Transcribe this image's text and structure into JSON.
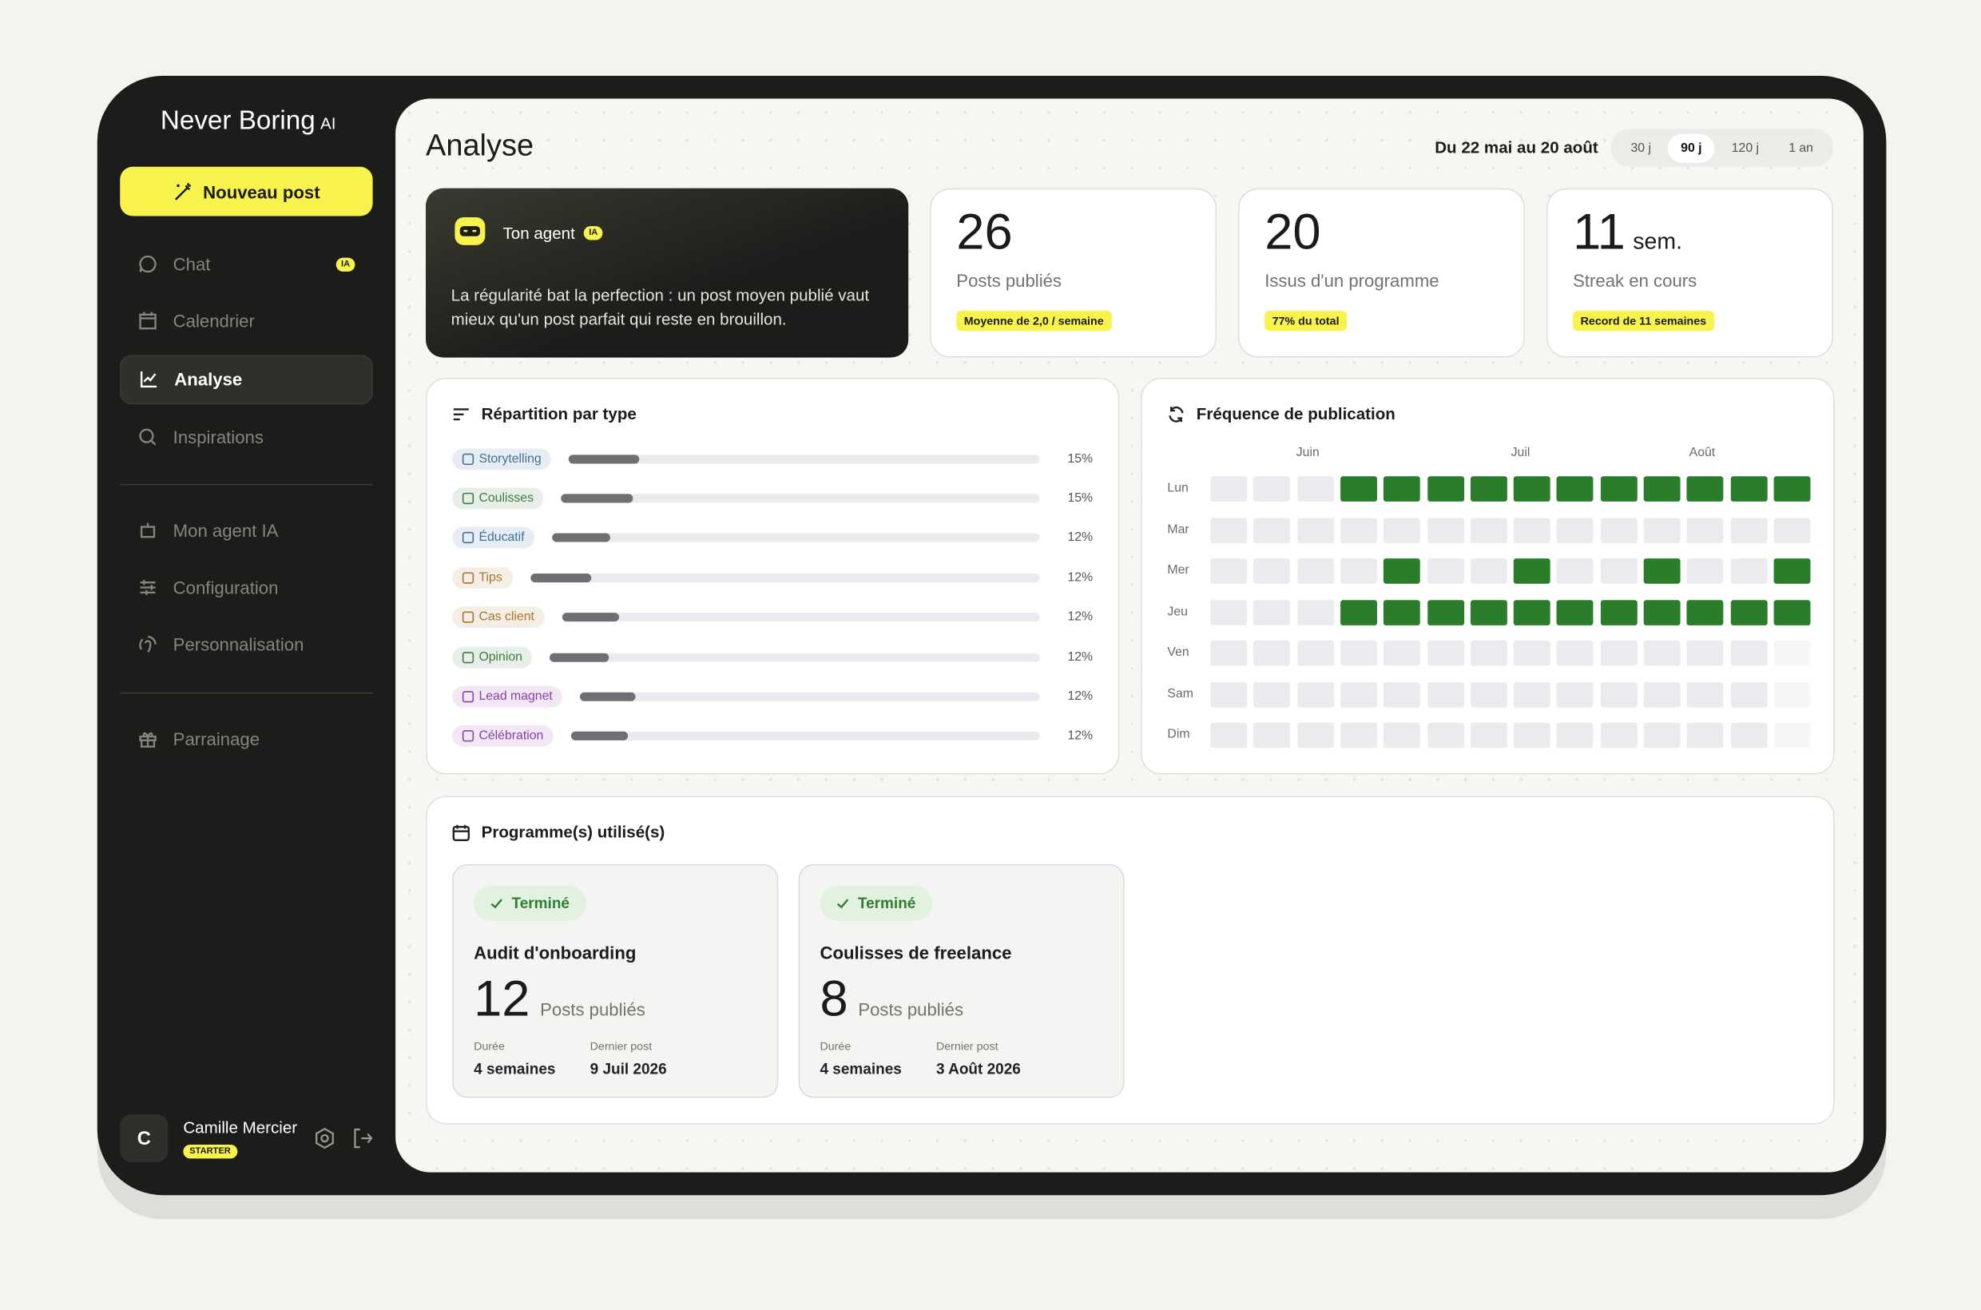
{
  "brand": {
    "name": "Never Boring",
    "suffix": "AI"
  },
  "sidebar": {
    "new_post": "Nouveau post",
    "nav": [
      {
        "label": "Chat",
        "badge": "IA"
      },
      {
        "label": "Calendrier"
      },
      {
        "label": "Analyse",
        "active": true
      },
      {
        "label": "Inspirations"
      }
    ],
    "nav2": [
      {
        "label": "Mon agent IA"
      },
      {
        "label": "Configuration"
      },
      {
        "label": "Personnalisation"
      }
    ],
    "nav3": [
      {
        "label": "Parrainage"
      }
    ]
  },
  "user": {
    "initial": "C",
    "name": "Camille Mercier",
    "plan": "STARTER"
  },
  "header": {
    "title": "Analyse",
    "range": "Du 22 mai au 20 août",
    "periods": [
      "30 j",
      "90 j",
      "120 j",
      "1 an"
    ],
    "active_period": 1
  },
  "agent": {
    "title": "Ton agent",
    "badge": "IA",
    "text": "La régularité bat la perfection : un post moyen publié vaut mieux qu'un post parfait qui reste en brouillon."
  },
  "stats": [
    {
      "value": 26,
      "label": "Posts publiés",
      "note": "Moyenne de 2,0 / semaine"
    },
    {
      "value": 20,
      "label": "Issus d'un programme",
      "note": "77% du total"
    },
    {
      "value": 11,
      "unit": "sem.",
      "label": "Streak en cours",
      "note": "Record de 11 semaines"
    }
  ],
  "distribution": {
    "title": "Répartition par type",
    "items": [
      {
        "label": "Storytelling",
        "value": 15,
        "value_label": "15%",
        "color": "#3f6f9e"
      },
      {
        "label": "Coulisses",
        "value": 15,
        "value_label": "15%",
        "color": "#3c7d3f"
      },
      {
        "label": "Éducatif",
        "value": 12,
        "value_label": "12%",
        "color": "#3f6f9e"
      },
      {
        "label": "Tips",
        "value": 12,
        "value_label": "12%",
        "color": "#a8742a"
      },
      {
        "label": "Cas client",
        "value": 12,
        "value_label": "12%",
        "color": "#a8742a"
      },
      {
        "label": "Opinion",
        "value": 12,
        "value_label": "12%",
        "color": "#3c7d3f"
      },
      {
        "label": "Lead magnet",
        "value": 12,
        "value_label": "12%",
        "color": "#8a3fa8"
      },
      {
        "label": "Célébration",
        "value": 12,
        "value_label": "12%",
        "color": "#8a3fa8"
      }
    ]
  },
  "frequency": {
    "title": "Fréquence de publication",
    "months": [
      "Juin",
      "Juil",
      "Août"
    ],
    "days": [
      "Lun",
      "Mar",
      "Mer",
      "Jeu",
      "Ven",
      "Sam",
      "Dim"
    ],
    "grid": [
      [
        0,
        0,
        0,
        1,
        1,
        1,
        1,
        1,
        1,
        1,
        1,
        1,
        1,
        1
      ],
      [
        0,
        0,
        0,
        0,
        0,
        0,
        0,
        0,
        0,
        0,
        0,
        0,
        0,
        0
      ],
      [
        0,
        0,
        0,
        0,
        1,
        0,
        0,
        1,
        0,
        0,
        1,
        0,
        0,
        1
      ],
      [
        0,
        0,
        0,
        1,
        1,
        1,
        1,
        1,
        1,
        1,
        1,
        1,
        1,
        1
      ],
      [
        0,
        0,
        0,
        0,
        0,
        0,
        0,
        0,
        0,
        0,
        0,
        0,
        0,
        null
      ],
      [
        0,
        0,
        0,
        0,
        0,
        0,
        0,
        0,
        0,
        0,
        0,
        0,
        0,
        null
      ],
      [
        0,
        0,
        0,
        0,
        0,
        0,
        0,
        0,
        0,
        0,
        0,
        0,
        0,
        null
      ]
    ]
  },
  "programs": {
    "title": "Programme(s) utilisé(s)",
    "items": [
      {
        "status": "Terminé",
        "name": "Audit d'onboarding",
        "posts": 12,
        "posts_label": "Posts publiés",
        "duration_label": "Durée",
        "duration": "4 semaines",
        "last_label": "Dernier post",
        "last": "9 Juil 2026"
      },
      {
        "status": "Terminé",
        "name": "Coulisses de freelance",
        "posts": 8,
        "posts_label": "Posts publiés",
        "duration_label": "Durée",
        "duration": "4 semaines",
        "last_label": "Dernier post",
        "last": "3 Août 2026"
      }
    ]
  }
}
